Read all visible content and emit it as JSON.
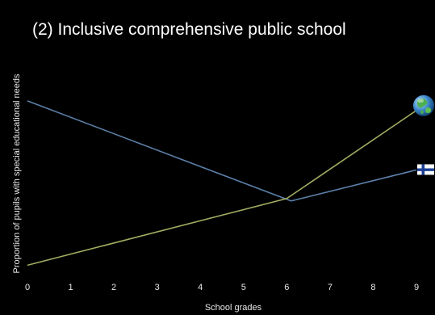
{
  "chart_data": {
    "type": "line",
    "title": "(2) Inclusive comprehensive public school",
    "xlabel": "School grades",
    "ylabel": "Proportion of pupils with special educational needs",
    "x": [
      0,
      1,
      2,
      3,
      4,
      5,
      6,
      7,
      8,
      9
    ],
    "xlim": [
      0,
      9
    ],
    "ylim": [
      0,
      10
    ],
    "grid": false,
    "series": [
      {
        "color": "#5b7fa8",
        "marker_icon": "finland-flag-icon",
        "points": [
          [
            0,
            7.8
          ],
          [
            6.1,
            3.6
          ],
          [
            9,
            4.9
          ]
        ]
      },
      {
        "color": "#a3ab60",
        "marker_icon": "globe-icon",
        "points": [
          [
            0,
            0.9
          ],
          [
            6,
            3.7
          ],
          [
            9,
            7.4
          ]
        ]
      }
    ]
  }
}
